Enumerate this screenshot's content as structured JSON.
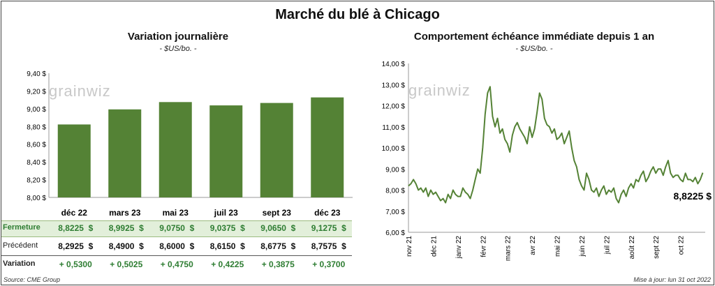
{
  "title": "Marché du blé à Chicago",
  "left": {
    "title": "Variation  journalière",
    "unit": "- $US/bo. -",
    "logo": "grainwiz",
    "y_ticks": [
      "9,40 $",
      "9,20 $",
      "9,00 $",
      "8,80 $",
      "8,60 $",
      "8,40 $",
      "8,20 $",
      "8,00 $"
    ],
    "table": {
      "rows": [
        {
          "label": "Fermeture",
          "values": [
            "8,8225  $",
            "8,9925  $",
            "9,0750  $",
            "9,0375  $",
            "9,0650  $",
            "9,1275  $"
          ]
        },
        {
          "label": "Précédent",
          "values": [
            "8,2925  $",
            "8,4900  $",
            "8,6000  $",
            "8,6150  $",
            "8,6775  $",
            "8,7575  $"
          ]
        },
        {
          "label": "Variation",
          "values": [
            "+ 0,5300",
            "+ 0,5025",
            "+ 0,4750",
            "+ 0,4225",
            "+ 0,3875",
            "+ 0,3700"
          ]
        }
      ]
    },
    "source": "Source: CME Group"
  },
  "right": {
    "title": "Comportement  échéance immédiate depuis 1 an",
    "unit": "- $US/bo. -",
    "logo": "grainwiz",
    "y_ticks": [
      "14,00 $",
      "13,00 $",
      "12,00 $",
      "11,00 $",
      "10,00 $",
      "9,00 $",
      "8,00 $",
      "7,00 $",
      "6,00 $"
    ],
    "x_ticks": [
      "nov 21",
      "déc 21",
      "janv 22",
      "févr 22",
      "mars 22",
      "avr 22",
      "mai 22",
      "juin 22",
      "juil 22",
      "août 22",
      "sept 22",
      "oct 22"
    ],
    "last_label": "8,8225 $",
    "updated": "Mise à jour: lun 31 oct 2022"
  },
  "colors": {
    "bar": "#548235",
    "line": "#548235",
    "positive": "#2e7d32",
    "highlight": "#e2efda"
  },
  "chart_data": [
    {
      "type": "bar",
      "title": "Variation  journalière",
      "ylabel": "- $US/bo. -",
      "categories": [
        "déc 22",
        "mars 23",
        "mai 23",
        "juil 23",
        "sept 23",
        "déc 23"
      ],
      "values": [
        8.8225,
        8.9925,
        9.075,
        9.0375,
        9.065,
        9.1275
      ],
      "ylim": [
        8.0,
        9.4
      ]
    },
    {
      "type": "line",
      "title": "Comportement  échéance immédiate depuis 1 an",
      "ylabel": "- $US/bo. -",
      "x_ticks": [
        "nov 21",
        "déc 21",
        "janv 22",
        "févr 22",
        "mars 22",
        "avr 22",
        "mai 22",
        "juin 22",
        "juil 22",
        "août 22",
        "sept 22",
        "oct 22"
      ],
      "ylim": [
        6.0,
        14.0
      ],
      "x": [
        0,
        0.1,
        0.2,
        0.3,
        0.4,
        0.5,
        0.6,
        0.7,
        0.8,
        0.9,
        1.0,
        1.1,
        1.2,
        1.3,
        1.4,
        1.5,
        1.6,
        1.7,
        1.8,
        1.9,
        2.0,
        2.1,
        2.2,
        2.3,
        2.4,
        2.5,
        2.6,
        2.7,
        2.8,
        2.9,
        3.0,
        3.1,
        3.2,
        3.3,
        3.4,
        3.5,
        3.6,
        3.7,
        3.8,
        3.9,
        4.0,
        4.1,
        4.2,
        4.3,
        4.4,
        4.5,
        4.6,
        4.7,
        4.8,
        4.9,
        5.0,
        5.1,
        5.2,
        5.3,
        5.4,
        5.5,
        5.6,
        5.7,
        5.8,
        5.9,
        6.0,
        6.1,
        6.2,
        6.3,
        6.4,
        6.5,
        6.6,
        6.7,
        6.8,
        6.9,
        7.0,
        7.1,
        7.2,
        7.3,
        7.4,
        7.5,
        7.6,
        7.7,
        7.8,
        7.9,
        8.0,
        8.1,
        8.2,
        8.3,
        8.4,
        8.5,
        8.6,
        8.7,
        8.8,
        8.9,
        9.0,
        9.1,
        9.2,
        9.3,
        9.4,
        9.5,
        9.6,
        9.7,
        9.8,
        9.9,
        10.0,
        10.1,
        10.2,
        10.3,
        10.4,
        10.5,
        10.6,
        10.7,
        10.8,
        10.9,
        11.0,
        11.1,
        11.2,
        11.3,
        11.4,
        11.5,
        11.6,
        11.7,
        11.8,
        11.9
      ],
      "values": [
        8.2,
        8.3,
        8.5,
        8.3,
        8.0,
        8.1,
        7.9,
        8.1,
        7.7,
        8.0,
        7.8,
        7.9,
        7.7,
        7.5,
        7.6,
        7.4,
        7.8,
        7.6,
        8.0,
        7.8,
        7.7,
        7.7,
        8.1,
        7.9,
        7.8,
        7.6,
        8.0,
        8.5,
        9.0,
        8.8,
        10.0,
        11.6,
        12.6,
        12.9,
        11.5,
        11.0,
        11.4,
        10.7,
        10.9,
        10.4,
        10.2,
        9.8,
        10.6,
        11.0,
        11.2,
        10.9,
        10.7,
        10.5,
        10.2,
        11.0,
        10.5,
        10.9,
        11.7,
        12.6,
        12.3,
        11.4,
        11.1,
        11.0,
        10.7,
        10.9,
        10.4,
        10.5,
        10.7,
        10.2,
        10.5,
        10.8,
        10.0,
        9.4,
        9.1,
        8.5,
        8.2,
        8.0,
        8.8,
        8.5,
        8.0,
        7.9,
        8.1,
        7.7,
        8.0,
        8.2,
        7.8,
        8.0,
        7.9,
        8.1,
        7.6,
        7.4,
        7.8,
        8.0,
        7.7,
        8.1,
        8.3,
        8.1,
        8.5,
        8.4,
        8.7,
        8.9,
        8.4,
        8.6,
        8.9,
        9.1,
        8.8,
        9.0,
        9.0,
        8.7,
        9.1,
        9.4,
        8.8,
        8.6,
        8.7,
        8.7,
        8.5,
        8.4,
        8.8,
        8.5,
        8.5,
        8.4,
        8.6,
        8.3,
        8.5,
        8.8225
      ]
    }
  ]
}
